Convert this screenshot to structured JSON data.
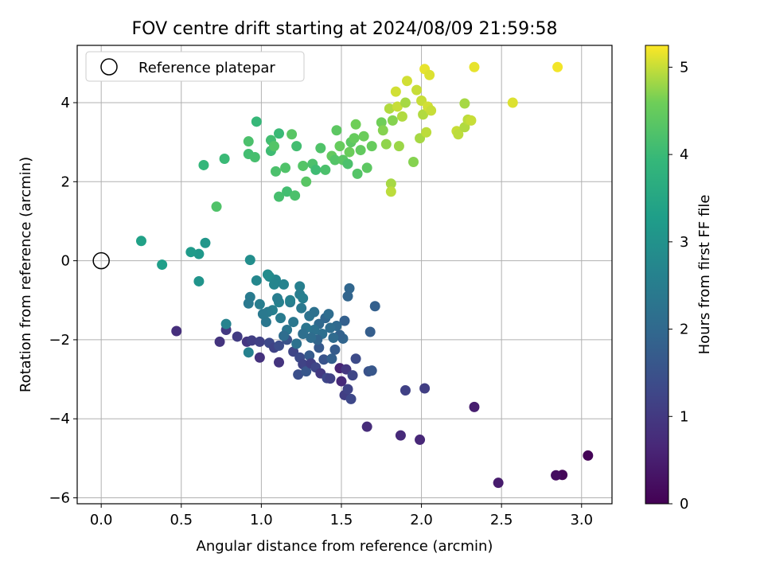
{
  "chart_data": {
    "type": "scatter",
    "title": "FOV centre drift starting at 2024/08/09 21:59:58",
    "xlabel": "Angular distance from reference (arcmin)",
    "ylabel": "Rotation from reference (arcmin)",
    "xlim": [
      -0.15,
      3.19
    ],
    "ylim": [
      -6.15,
      5.45
    ],
    "xticks": [
      0.0,
      0.5,
      1.0,
      1.5,
      2.0,
      2.5,
      3.0
    ],
    "xtick_labels": [
      "0.0",
      "0.5",
      "1.0",
      "1.5",
      "2.0",
      "2.5",
      "3.0"
    ],
    "yticks": [
      -6,
      -4,
      -2,
      0,
      2,
      4
    ],
    "ytick_labels": [
      "−6",
      "−4",
      "−2",
      "0",
      "2",
      "4"
    ],
    "grid": true,
    "legend": {
      "placement": "top-left",
      "entries": [
        "Reference platepar"
      ]
    },
    "reference_point": {
      "x": 0.0,
      "y": 0.0
    },
    "colorbar": {
      "label": "Hours from first FF file",
      "range": [
        0,
        5.25
      ],
      "ticks": [
        0,
        1,
        2,
        3,
        4,
        5
      ],
      "tick_labels": [
        "0",
        "1",
        "2",
        "3",
        "4",
        "5"
      ],
      "colormap": "viridis"
    },
    "points": [
      {
        "x": 3.04,
        "y": -4.93,
        "h": 0.05
      },
      {
        "x": 2.88,
        "y": -5.42,
        "h": 0.1
      },
      {
        "x": 2.84,
        "y": -5.43,
        "h": 0.2
      },
      {
        "x": 2.48,
        "y": -5.62,
        "h": 0.45
      },
      {
        "x": 2.33,
        "y": -3.7,
        "h": 0.5
      },
      {
        "x": 1.99,
        "y": -4.53,
        "h": 0.65
      },
      {
        "x": 1.87,
        "y": -4.42,
        "h": 0.7
      },
      {
        "x": 1.66,
        "y": -4.2,
        "h": 0.75
      },
      {
        "x": 2.02,
        "y": -3.23,
        "h": 1.1
      },
      {
        "x": 1.9,
        "y": -3.28,
        "h": 1.15
      },
      {
        "x": 0.47,
        "y": -1.78,
        "h": 0.8
      },
      {
        "x": 0.74,
        "y": -2.05,
        "h": 0.9
      },
      {
        "x": 0.78,
        "y": -1.75,
        "h": 1.0
      },
      {
        "x": 0.85,
        "y": -1.92,
        "h": 1.05
      },
      {
        "x": 0.91,
        "y": -2.05,
        "h": 0.95
      },
      {
        "x": 0.94,
        "y": -2.02,
        "h": 1.1
      },
      {
        "x": 0.99,
        "y": -2.45,
        "h": 0.85
      },
      {
        "x": 0.99,
        "y": -2.05,
        "h": 1.15
      },
      {
        "x": 1.05,
        "y": -2.08,
        "h": 1.3
      },
      {
        "x": 1.08,
        "y": -2.2,
        "h": 1.2
      },
      {
        "x": 1.11,
        "y": -2.57,
        "h": 0.9
      },
      {
        "x": 1.11,
        "y": -2.15,
        "h": 1.4
      },
      {
        "x": 1.16,
        "y": -2.0,
        "h": 1.5
      },
      {
        "x": 1.2,
        "y": -2.3,
        "h": 1.25
      },
      {
        "x": 1.23,
        "y": -2.88,
        "h": 1.45
      },
      {
        "x": 1.24,
        "y": -2.45,
        "h": 1.35
      },
      {
        "x": 1.26,
        "y": -2.62,
        "h": 1.2
      },
      {
        "x": 1.28,
        "y": -2.8,
        "h": 1.6
      },
      {
        "x": 1.3,
        "y": -2.4,
        "h": 1.7
      },
      {
        "x": 1.31,
        "y": -2.6,
        "h": 1.1
      },
      {
        "x": 1.34,
        "y": -2.7,
        "h": 1.25
      },
      {
        "x": 1.36,
        "y": -2.2,
        "h": 1.65
      },
      {
        "x": 1.37,
        "y": -2.85,
        "h": 1.0
      },
      {
        "x": 1.39,
        "y": -2.5,
        "h": 1.55
      },
      {
        "x": 1.41,
        "y": -2.97,
        "h": 1.3
      },
      {
        "x": 1.43,
        "y": -2.98,
        "h": 1.15
      },
      {
        "x": 1.44,
        "y": -2.48,
        "h": 1.8
      },
      {
        "x": 1.46,
        "y": -2.25,
        "h": 1.7
      },
      {
        "x": 1.49,
        "y": -2.72,
        "h": 0.6
      },
      {
        "x": 1.5,
        "y": -3.05,
        "h": 0.7
      },
      {
        "x": 1.52,
        "y": -3.4,
        "h": 1.1
      },
      {
        "x": 1.53,
        "y": -2.75,
        "h": 0.95
      },
      {
        "x": 1.54,
        "y": -3.25,
        "h": 1.2
      },
      {
        "x": 1.56,
        "y": -3.5,
        "h": 1.3
      },
      {
        "x": 1.57,
        "y": -2.9,
        "h": 1.25
      },
      {
        "x": 1.59,
        "y": -2.48,
        "h": 1.35
      },
      {
        "x": 1.67,
        "y": -2.8,
        "h": 1.5
      },
      {
        "x": 1.69,
        "y": -2.78,
        "h": 1.6
      },
      {
        "x": 1.68,
        "y": -1.8,
        "h": 1.75
      },
      {
        "x": 1.71,
        "y": -1.15,
        "h": 1.8
      },
      {
        "x": 1.55,
        "y": -0.7,
        "h": 1.95
      },
      {
        "x": 1.54,
        "y": -0.9,
        "h": 1.9
      },
      {
        "x": 1.52,
        "y": -1.52,
        "h": 1.8
      },
      {
        "x": 1.51,
        "y": -1.97,
        "h": 1.9
      },
      {
        "x": 1.49,
        "y": -1.88,
        "h": 1.85
      },
      {
        "x": 1.47,
        "y": -1.65,
        "h": 2.0
      },
      {
        "x": 1.45,
        "y": -1.95,
        "h": 2.05
      },
      {
        "x": 1.43,
        "y": -1.7,
        "h": 2.1
      },
      {
        "x": 1.4,
        "y": -1.45,
        "h": 1.95
      },
      {
        "x": 1.38,
        "y": -1.85,
        "h": 2.15
      },
      {
        "x": 1.36,
        "y": -1.6,
        "h": 2.0
      },
      {
        "x": 1.35,
        "y": -2.0,
        "h": 1.9
      },
      {
        "x": 1.33,
        "y": -1.75,
        "h": 2.2
      },
      {
        "x": 1.31,
        "y": -1.95,
        "h": 2.1
      },
      {
        "x": 1.3,
        "y": -1.4,
        "h": 2.25
      },
      {
        "x": 1.28,
        "y": -1.7,
        "h": 2.3
      },
      {
        "x": 1.26,
        "y": -1.85,
        "h": 2.15
      },
      {
        "x": 1.25,
        "y": -1.2,
        "h": 2.4
      },
      {
        "x": 1.24,
        "y": -0.85,
        "h": 2.5
      },
      {
        "x": 1.24,
        "y": -0.65,
        "h": 2.55
      },
      {
        "x": 1.22,
        "y": -2.1,
        "h": 2.2
      },
      {
        "x": 1.2,
        "y": -1.55,
        "h": 2.35
      },
      {
        "x": 1.18,
        "y": -1.05,
        "h": 2.4
      },
      {
        "x": 1.16,
        "y": -1.75,
        "h": 2.3
      },
      {
        "x": 1.14,
        "y": -1.9,
        "h": 2.1
      },
      {
        "x": 1.12,
        "y": -1.45,
        "h": 2.45
      },
      {
        "x": 1.11,
        "y": -1.05,
        "h": 2.6
      },
      {
        "x": 1.1,
        "y": -0.95,
        "h": 2.5
      },
      {
        "x": 1.09,
        "y": -0.48,
        "h": 2.7
      },
      {
        "x": 1.07,
        "y": -1.25,
        "h": 2.55
      },
      {
        "x": 1.05,
        "y": -0.4,
        "h": 2.8
      },
      {
        "x": 1.04,
        "y": -1.3,
        "h": 2.45
      },
      {
        "x": 1.03,
        "y": -1.55,
        "h": 2.35
      },
      {
        "x": 1.01,
        "y": -1.35,
        "h": 2.4
      },
      {
        "x": 0.99,
        "y": -1.1,
        "h": 2.5
      },
      {
        "x": 0.97,
        "y": -0.5,
        "h": 2.75
      },
      {
        "x": 0.93,
        "y": -0.92,
        "h": 2.45
      },
      {
        "x": 0.92,
        "y": -1.08,
        "h": 2.4
      },
      {
        "x": 0.92,
        "y": -2.32,
        "h": 2.6
      },
      {
        "x": 0.78,
        "y": -1.6,
        "h": 2.65
      },
      {
        "x": 1.08,
        "y": -0.6,
        "h": 2.7
      },
      {
        "x": 1.14,
        "y": -0.6,
        "h": 2.65
      },
      {
        "x": 1.18,
        "y": -1.0,
        "h": 2.6
      },
      {
        "x": 1.26,
        "y": -0.95,
        "h": 2.55
      },
      {
        "x": 1.33,
        "y": -1.3,
        "h": 2.2
      },
      {
        "x": 1.42,
        "y": -1.35,
        "h": 2.1
      },
      {
        "x": 0.93,
        "y": 0.02,
        "h": 2.9
      },
      {
        "x": 1.04,
        "y": -0.35,
        "h": 2.85
      },
      {
        "x": 0.61,
        "y": -0.52,
        "h": 3.05
      },
      {
        "x": 0.61,
        "y": 0.17,
        "h": 3.15
      },
      {
        "x": 0.56,
        "y": 0.22,
        "h": 3.2
      },
      {
        "x": 0.38,
        "y": -0.1,
        "h": 3.3
      },
      {
        "x": 0.25,
        "y": 0.5,
        "h": 3.35
      },
      {
        "x": 0.65,
        "y": 0.45,
        "h": 3.1
      },
      {
        "x": 0.72,
        "y": 1.37,
        "h": 4.25
      },
      {
        "x": 0.64,
        "y": 2.42,
        "h": 3.9
      },
      {
        "x": 0.77,
        "y": 2.58,
        "h": 4.0
      },
      {
        "x": 0.92,
        "y": 2.7,
        "h": 4.1
      },
      {
        "x": 0.92,
        "y": 3.02,
        "h": 4.2
      },
      {
        "x": 0.97,
        "y": 3.52,
        "h": 3.95
      },
      {
        "x": 0.96,
        "y": 2.62,
        "h": 4.15
      },
      {
        "x": 1.06,
        "y": 2.78,
        "h": 4.05
      },
      {
        "x": 1.06,
        "y": 3.05,
        "h": 4.1
      },
      {
        "x": 1.08,
        "y": 2.9,
        "h": 4.3
      },
      {
        "x": 1.09,
        "y": 2.26,
        "h": 4.2
      },
      {
        "x": 1.11,
        "y": 3.22,
        "h": 4.0
      },
      {
        "x": 1.11,
        "y": 1.62,
        "h": 4.15
      },
      {
        "x": 1.15,
        "y": 2.35,
        "h": 4.25
      },
      {
        "x": 1.16,
        "y": 1.75,
        "h": 4.1
      },
      {
        "x": 1.19,
        "y": 3.2,
        "h": 4.35
      },
      {
        "x": 1.21,
        "y": 1.65,
        "h": 4.2
      },
      {
        "x": 1.22,
        "y": 2.9,
        "h": 4.1
      },
      {
        "x": 1.26,
        "y": 2.4,
        "h": 4.3
      },
      {
        "x": 1.28,
        "y": 2.0,
        "h": 4.35
      },
      {
        "x": 1.32,
        "y": 2.45,
        "h": 4.2
      },
      {
        "x": 1.34,
        "y": 2.3,
        "h": 4.05
      },
      {
        "x": 1.37,
        "y": 2.85,
        "h": 4.25
      },
      {
        "x": 1.4,
        "y": 2.3,
        "h": 4.2
      },
      {
        "x": 1.44,
        "y": 2.65,
        "h": 4.45
      },
      {
        "x": 1.46,
        "y": 2.55,
        "h": 4.3
      },
      {
        "x": 1.47,
        "y": 3.3,
        "h": 4.4
      },
      {
        "x": 1.49,
        "y": 2.9,
        "h": 4.5
      },
      {
        "x": 1.51,
        "y": 2.55,
        "h": 4.35
      },
      {
        "x": 1.54,
        "y": 2.45,
        "h": 4.2
      },
      {
        "x": 1.55,
        "y": 2.75,
        "h": 4.55
      },
      {
        "x": 1.56,
        "y": 3.0,
        "h": 4.4
      },
      {
        "x": 1.58,
        "y": 3.1,
        "h": 4.5
      },
      {
        "x": 1.59,
        "y": 3.45,
        "h": 4.6
      },
      {
        "x": 1.6,
        "y": 2.2,
        "h": 4.3
      },
      {
        "x": 1.62,
        "y": 2.8,
        "h": 4.45
      },
      {
        "x": 1.64,
        "y": 3.15,
        "h": 4.55
      },
      {
        "x": 1.66,
        "y": 2.35,
        "h": 4.4
      },
      {
        "x": 1.69,
        "y": 2.9,
        "h": 4.5
      },
      {
        "x": 1.75,
        "y": 3.5,
        "h": 4.6
      },
      {
        "x": 1.76,
        "y": 3.3,
        "h": 4.7
      },
      {
        "x": 1.78,
        "y": 2.95,
        "h": 4.75
      },
      {
        "x": 1.8,
        "y": 3.85,
        "h": 4.9
      },
      {
        "x": 1.81,
        "y": 1.95,
        "h": 4.85
      },
      {
        "x": 1.81,
        "y": 1.75,
        "h": 4.95
      },
      {
        "x": 1.82,
        "y": 3.55,
        "h": 4.7
      },
      {
        "x": 1.84,
        "y": 4.28,
        "h": 5.05
      },
      {
        "x": 1.85,
        "y": 3.9,
        "h": 5.0
      },
      {
        "x": 1.86,
        "y": 2.9,
        "h": 4.8
      },
      {
        "x": 1.88,
        "y": 3.65,
        "h": 4.9
      },
      {
        "x": 1.9,
        "y": 4.0,
        "h": 4.85
      },
      {
        "x": 1.91,
        "y": 4.55,
        "h": 5.05
      },
      {
        "x": 1.95,
        "y": 2.5,
        "h": 4.7
      },
      {
        "x": 1.97,
        "y": 4.32,
        "h": 5.0
      },
      {
        "x": 1.99,
        "y": 3.1,
        "h": 4.85
      },
      {
        "x": 2.0,
        "y": 4.05,
        "h": 5.0
      },
      {
        "x": 2.01,
        "y": 3.7,
        "h": 4.9
      },
      {
        "x": 2.02,
        "y": 4.85,
        "h": 5.15
      },
      {
        "x": 2.03,
        "y": 3.25,
        "h": 4.95
      },
      {
        "x": 2.04,
        "y": 3.9,
        "h": 5.05
      },
      {
        "x": 2.05,
        "y": 4.7,
        "h": 5.1
      },
      {
        "x": 2.06,
        "y": 3.8,
        "h": 5.0
      },
      {
        "x": 2.22,
        "y": 3.28,
        "h": 5.0
      },
      {
        "x": 2.23,
        "y": 3.2,
        "h": 4.95
      },
      {
        "x": 2.27,
        "y": 3.38,
        "h": 4.9
      },
      {
        "x": 2.27,
        "y": 3.98,
        "h": 4.85
      },
      {
        "x": 2.29,
        "y": 3.57,
        "h": 4.95
      },
      {
        "x": 2.31,
        "y": 3.55,
        "h": 5.0
      },
      {
        "x": 2.33,
        "y": 4.9,
        "h": 5.15
      },
      {
        "x": 2.57,
        "y": 4.0,
        "h": 5.1
      },
      {
        "x": 2.85,
        "y": 4.9,
        "h": 5.2
      }
    ]
  }
}
